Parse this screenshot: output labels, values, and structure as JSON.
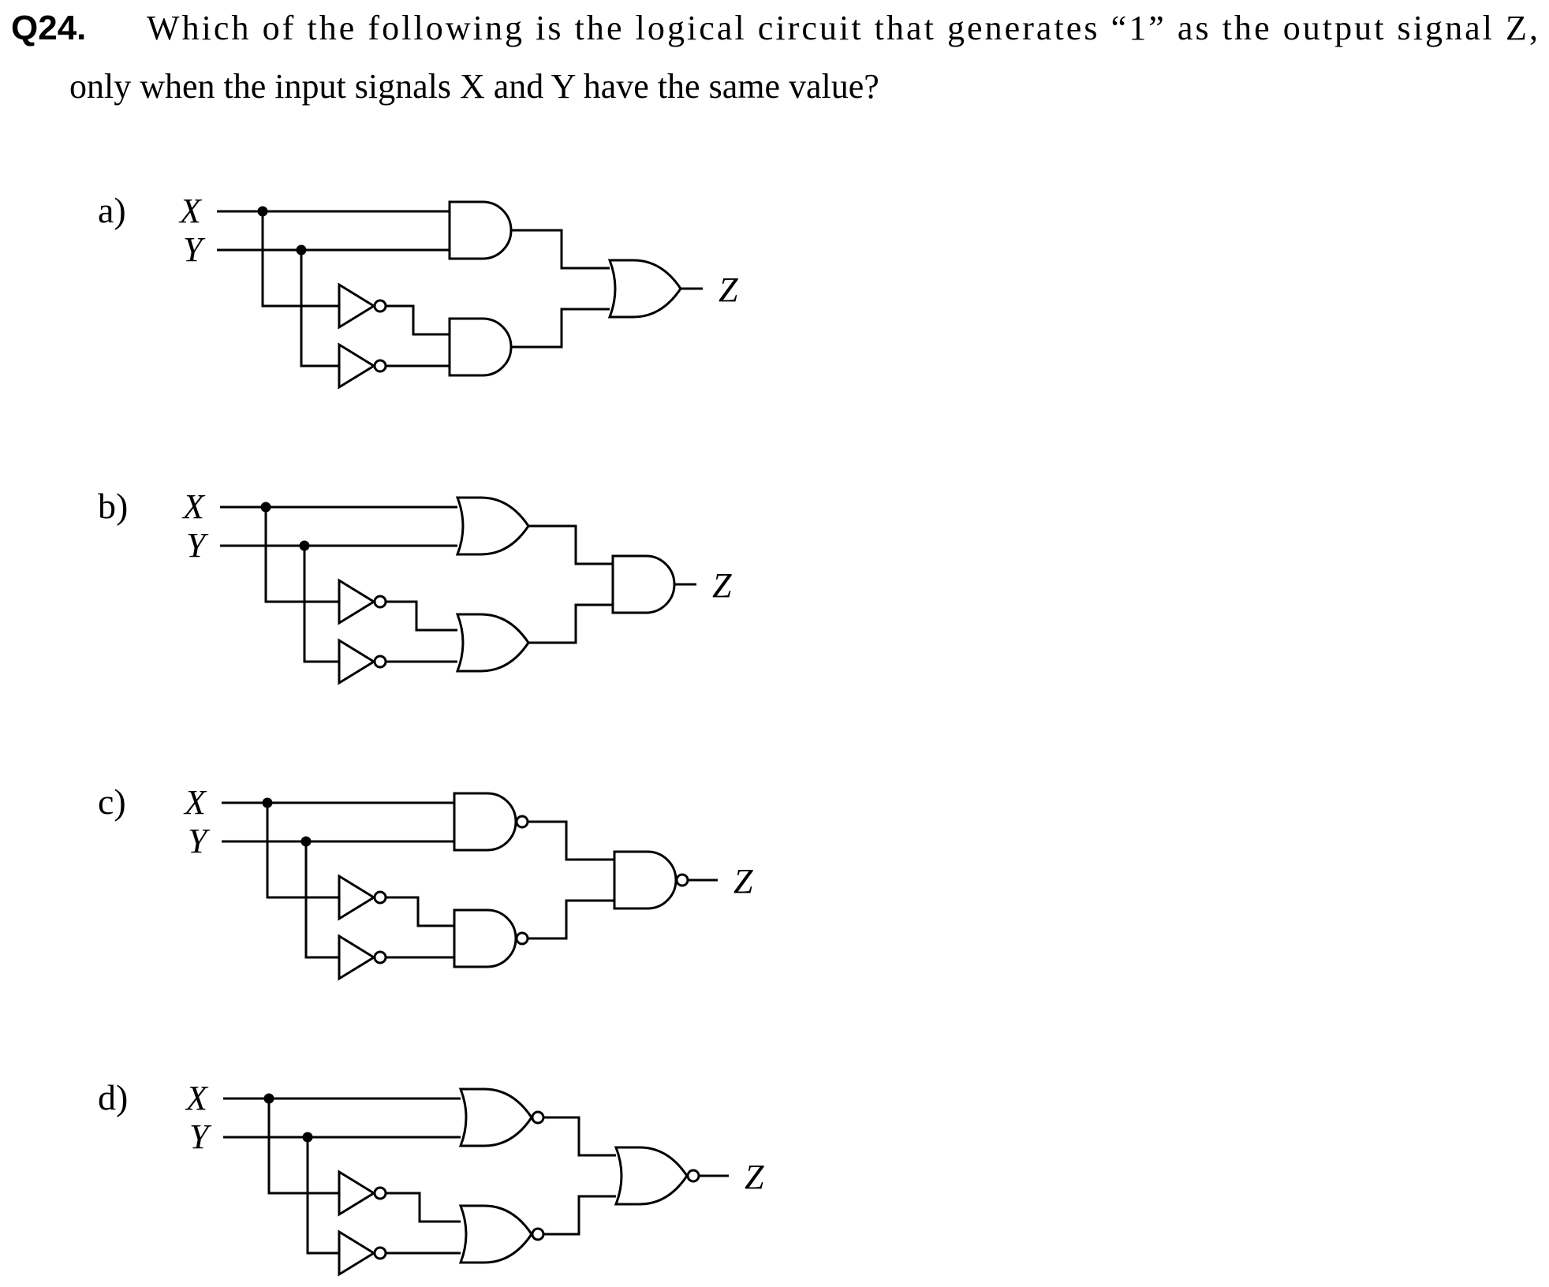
{
  "question": {
    "number": "Q24.",
    "line1": "Which of the following is the logical circuit that generates “1” as the output signal Z,",
    "line2": "only when the input signals X and Y have the same value?"
  },
  "options": [
    {
      "label": "a)",
      "input_x": "X",
      "input_y": "Y",
      "output": "Z",
      "first_gate": "and",
      "output_gate": "or"
    },
    {
      "label": "b)",
      "input_x": "X",
      "input_y": "Y",
      "output": "Z",
      "first_gate": "or",
      "output_gate": "and"
    },
    {
      "label": "c)",
      "input_x": "X",
      "input_y": "Y",
      "output": "Z",
      "first_gate": "nand",
      "output_gate": "nand"
    },
    {
      "label": "d)",
      "input_x": "X",
      "input_y": "Y",
      "output": "Z",
      "first_gate": "nor",
      "output_gate": "nor"
    }
  ]
}
